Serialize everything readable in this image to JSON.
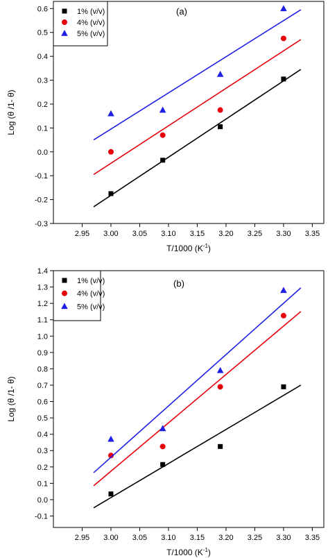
{
  "chart_data": [
    {
      "type": "scatter",
      "title": "(a)",
      "xlabel": "T/1000 (K",
      "xlabel_sup": "-1",
      "xlabel_tail": ")",
      "ylabel": "Log (θ /1- θ)",
      "xlim": [
        2.9,
        3.37
      ],
      "ylim": [
        -0.3,
        0.63
      ],
      "xticks": [
        "2.95",
        "3.00",
        "3.05",
        "3.10",
        "3.15",
        "3.20",
        "3.25",
        "3.30",
        "3.35"
      ],
      "yticks": [
        "-0.3",
        "-0.2",
        "-0.1",
        "0.0",
        "0.1",
        "0.2",
        "0.3",
        "0.4",
        "0.5",
        "0.6"
      ],
      "legend_position": "top-left",
      "grid": false,
      "series": [
        {
          "name": "1% (v/v)",
          "marker": "square",
          "color": "#000000",
          "x": [
            3.0,
            3.09,
            3.19,
            3.3
          ],
          "y": [
            -0.175,
            -0.035,
            0.105,
            0.305
          ],
          "fit": {
            "x": [
              2.97,
              3.33
            ],
            "y": [
              -0.23,
              0.345
            ]
          }
        },
        {
          "name": "4% (v/v)",
          "marker": "circle",
          "color": "#e8000b",
          "x": [
            3.0,
            3.09,
            3.19,
            3.3
          ],
          "y": [
            0.0,
            0.07,
            0.175,
            0.475
          ],
          "fit": {
            "x": [
              2.97,
              3.33
            ],
            "y": [
              -0.095,
              0.47
            ]
          }
        },
        {
          "name": "5% (v/v)",
          "marker": "triangle",
          "color": "#1f1fe6",
          "x": [
            3.0,
            3.09,
            3.19,
            3.3
          ],
          "y": [
            0.16,
            0.175,
            0.325,
            0.6
          ],
          "fit": {
            "x": [
              2.97,
              3.33
            ],
            "y": [
              0.05,
              0.595
            ]
          }
        }
      ]
    },
    {
      "type": "scatter",
      "title": "(b)",
      "xlabel": "T/1000 (K",
      "xlabel_sup": "-1",
      "xlabel_tail": ")",
      "ylabel": "Log (θ /1- θ)",
      "xlim": [
        2.9,
        3.37
      ],
      "ylim": [
        -0.17,
        1.4
      ],
      "xticks": [
        "2.95",
        "3.00",
        "3.05",
        "3.10",
        "3.15",
        "3.20",
        "3.25",
        "3.30",
        "3.35"
      ],
      "yticks": [
        "-0.1",
        "0.0",
        "0.1",
        "0.2",
        "0.3",
        "0.4",
        "0.5",
        "0.6",
        "0.7",
        "0.8",
        "0.9",
        "1.0",
        "1.1",
        "1.2",
        "1.3",
        "1.4"
      ],
      "legend_position": "top-left",
      "grid": false,
      "series": [
        {
          "name": "1% (v/v)",
          "marker": "square",
          "color": "#000000",
          "x": [
            3.0,
            3.09,
            3.19,
            3.3
          ],
          "y": [
            0.035,
            0.215,
            0.325,
            0.69
          ],
          "fit": {
            "x": [
              2.97,
              3.33
            ],
            "y": [
              -0.05,
              0.7
            ]
          }
        },
        {
          "name": "4% (v/v)",
          "marker": "circle",
          "color": "#e8000b",
          "x": [
            3.0,
            3.09,
            3.19,
            3.3
          ],
          "y": [
            0.27,
            0.325,
            0.69,
            1.125
          ],
          "fit": {
            "x": [
              2.97,
              3.33
            ],
            "y": [
              0.085,
              1.15
            ]
          }
        },
        {
          "name": "5% (v/v)",
          "marker": "triangle",
          "color": "#1f1fe6",
          "x": [
            3.0,
            3.09,
            3.19,
            3.3
          ],
          "y": [
            0.37,
            0.435,
            0.79,
            1.28
          ],
          "fit": {
            "x": [
              2.97,
              3.33
            ],
            "y": [
              0.165,
              1.295
            ]
          }
        }
      ]
    }
  ]
}
